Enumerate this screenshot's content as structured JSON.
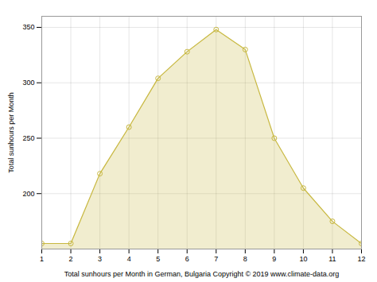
{
  "chart_data": {
    "type": "area",
    "x": [
      1,
      2,
      3,
      4,
      5,
      6,
      7,
      8,
      9,
      10,
      11,
      12
    ],
    "values": [
      155,
      155,
      218,
      260,
      304,
      328,
      348,
      330,
      250,
      205,
      175,
      155
    ],
    "xlabel": "Total sunhours per Month in German, Bulgaria Copyright © 2019 www.climate-data.org",
    "ylabel": "Total sunhours per Month",
    "xlim": [
      1,
      12
    ],
    "ylim": [
      150,
      360
    ],
    "xticks": [
      1,
      2,
      3,
      4,
      5,
      6,
      7,
      8,
      9,
      10,
      11,
      12
    ],
    "yticks": [
      200,
      250,
      300,
      350
    ],
    "grid": true,
    "color": "#C8B840",
    "marker": "circle"
  }
}
